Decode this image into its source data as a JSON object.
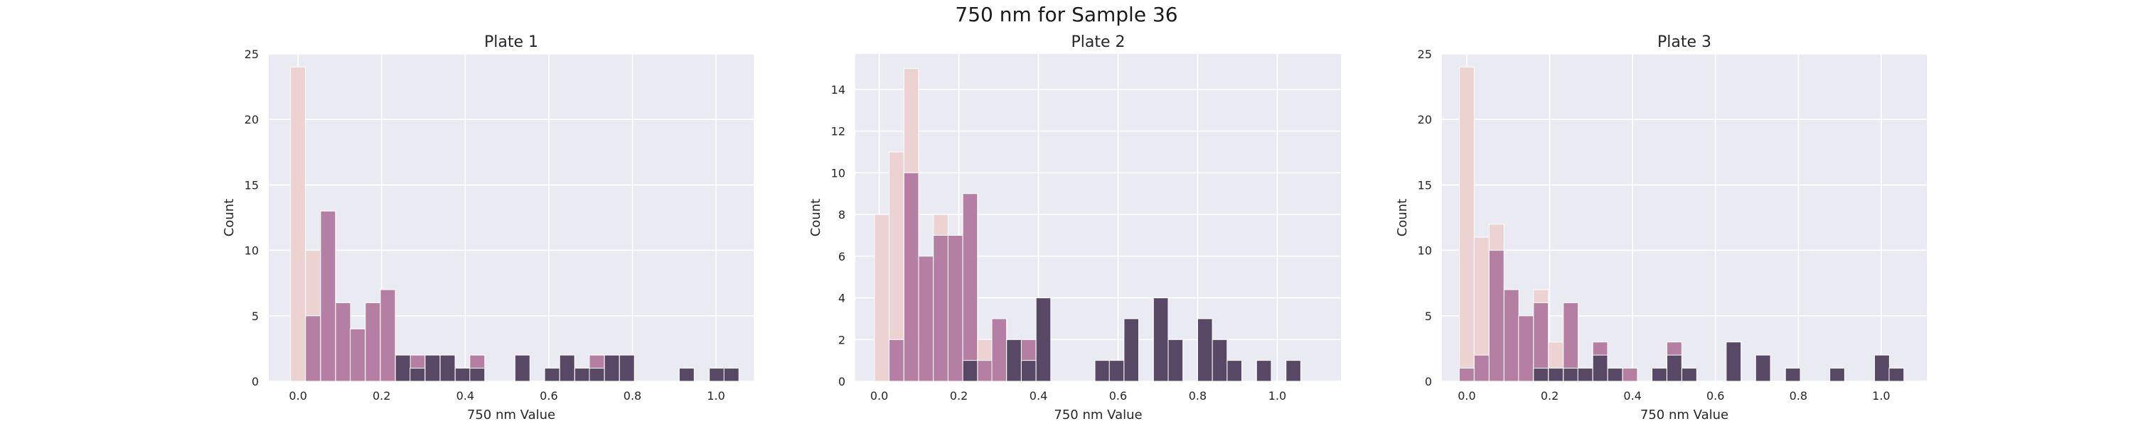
{
  "figure": {
    "title": "750 nm for Sample 36"
  },
  "colors": {
    "background": "#eaeaf2",
    "grid": "#ffffff",
    "light": "#ecd3d2",
    "mid": "#b47fa2",
    "dark": "#574966"
  },
  "chart_data": [
    {
      "type": "histogram",
      "title": "Plate 1",
      "xlabel": "750 nm Value",
      "ylabel": "Count",
      "xlim": [
        -0.07,
        1.09
      ],
      "ylim": [
        0,
        25
      ],
      "xticks": [
        "0.0",
        "0.2",
        "0.4",
        "0.6",
        "0.8",
        "1.0"
      ],
      "yticks": [
        "0",
        "5",
        "10",
        "15",
        "20",
        "25"
      ],
      "bin_width": 0.0357,
      "bin_starts": [
        -0.018,
        0.018,
        0.054,
        0.09,
        0.125,
        0.161,
        0.197,
        0.233,
        0.268,
        0.304,
        0.34,
        0.376,
        0.411,
        0.519,
        0.59,
        0.626,
        0.662,
        0.697,
        0.733,
        0.769,
        0.912,
        0.984,
        1.019
      ],
      "series": [
        {
          "values": [
            24,
            10,
            13,
            6,
            4,
            6,
            7,
            2,
            2,
            2,
            2,
            1,
            2,
            2,
            1,
            2,
            1,
            2,
            2,
            2,
            1,
            1,
            1
          ]
        },
        {
          "values": [
            0,
            5,
            13,
            6,
            4,
            6,
            7,
            2,
            2,
            2,
            2,
            1,
            2,
            2,
            1,
            2,
            1,
            2,
            2,
            2,
            1,
            1,
            1
          ]
        },
        {
          "values": [
            0,
            0,
            0,
            0,
            0,
            0,
            0,
            2,
            1,
            2,
            2,
            1,
            1,
            2,
            1,
            2,
            1,
            1,
            2,
            2,
            1,
            1,
            1
          ]
        }
      ]
    },
    {
      "type": "histogram",
      "title": "Plate 2",
      "xlabel": "750 nm Value",
      "ylabel": "Count",
      "xlim": [
        -0.06,
        1.16
      ],
      "ylim": [
        0,
        15.7
      ],
      "xticks": [
        "0.0",
        "0.2",
        "0.4",
        "0.6",
        "0.8",
        "1.0"
      ],
      "yticks": [
        "0",
        "2",
        "4",
        "6",
        "8",
        "10",
        "12",
        "14"
      ],
      "bin_width": 0.0369,
      "bin_starts": [
        -0.012,
        0.025,
        0.062,
        0.099,
        0.136,
        0.173,
        0.21,
        0.247,
        0.283,
        0.32,
        0.357,
        0.394,
        0.542,
        0.578,
        0.615,
        0.689,
        0.726,
        0.8,
        0.837,
        0.874,
        0.948,
        1.022
      ],
      "series": [
        {
          "values": [
            8,
            11,
            15,
            6,
            8,
            7,
            9,
            2,
            3,
            2,
            2,
            4,
            1,
            1,
            3,
            4,
            2,
            3,
            2,
            1,
            1,
            1
          ]
        },
        {
          "values": [
            0,
            2,
            10,
            6,
            7,
            7,
            9,
            1,
            3,
            2,
            2,
            4,
            1,
            1,
            3,
            4,
            2,
            3,
            2,
            1,
            1,
            1
          ]
        },
        {
          "values": [
            0,
            0,
            0,
            0,
            0,
            0,
            1,
            0,
            0,
            2,
            1,
            4,
            1,
            1,
            3,
            4,
            2,
            3,
            2,
            1,
            1,
            1
          ]
        }
      ]
    },
    {
      "type": "histogram",
      "title": "Plate 3",
      "xlabel": "750 nm Value",
      "ylabel": "Count",
      "xlim": [
        -0.06,
        1.11
      ],
      "ylim": [
        0,
        25
      ],
      "xticks": [
        "0.0",
        "0.2",
        "0.4",
        "0.6",
        "0.8",
        "1.0"
      ],
      "yticks": [
        "0",
        "5",
        "10",
        "15",
        "20",
        "25"
      ],
      "bin_width": 0.0357,
      "bin_starts": [
        -0.018,
        0.018,
        0.054,
        0.09,
        0.125,
        0.161,
        0.197,
        0.233,
        0.268,
        0.304,
        0.34,
        0.376,
        0.447,
        0.483,
        0.519,
        0.626,
        0.697,
        0.769,
        0.876,
        0.984,
        1.019
      ],
      "series": [
        {
          "values": [
            24,
            11,
            12,
            7,
            5,
            7,
            3,
            6,
            1,
            3,
            1,
            1,
            1,
            3,
            1,
            3,
            2,
            1,
            1,
            2,
            1
          ]
        },
        {
          "values": [
            1,
            2,
            10,
            7,
            5,
            6,
            1,
            6,
            1,
            3,
            1,
            1,
            1,
            3,
            1,
            3,
            2,
            1,
            1,
            2,
            1
          ]
        },
        {
          "values": [
            0,
            0,
            0,
            0,
            0,
            1,
            1,
            1,
            1,
            2,
            1,
            0,
            1,
            2,
            1,
            3,
            2,
            1,
            1,
            2,
            1
          ]
        }
      ]
    }
  ]
}
